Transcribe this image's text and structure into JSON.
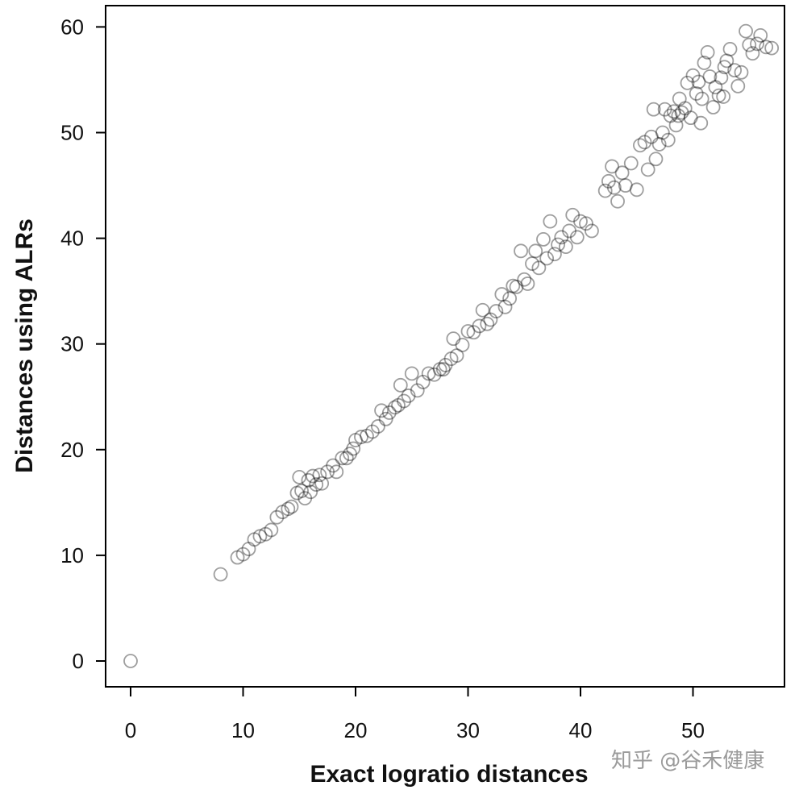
{
  "chart_data": {
    "type": "scatter",
    "title": "",
    "xlabel": "Exact logratio distances",
    "ylabel": "Distances using ALRs",
    "xlim": [
      0,
      57
    ],
    "ylim": [
      0,
      60
    ],
    "x_ticks": [
      0,
      10,
      20,
      30,
      40,
      50
    ],
    "y_ticks": [
      0,
      10,
      20,
      30,
      40,
      50,
      60
    ],
    "grid": false,
    "legend": "none",
    "marker": "open-circle",
    "marker_color": "#000000",
    "series": [
      {
        "points": [
          [
            0,
            0
          ],
          [
            8,
            8.2
          ],
          [
            9.5,
            9.8
          ],
          [
            10,
            10.1
          ],
          [
            10.5,
            10.6
          ],
          [
            11,
            11.5
          ],
          [
            11.5,
            11.8
          ],
          [
            12,
            12
          ],
          [
            12.5,
            12.4
          ],
          [
            13,
            13.6
          ],
          [
            13.5,
            14.1
          ],
          [
            14,
            14.4
          ],
          [
            14.3,
            14.6
          ],
          [
            14.8,
            15.9
          ],
          [
            15,
            17.4
          ],
          [
            15.2,
            16.1
          ],
          [
            15.5,
            15.4
          ],
          [
            15.8,
            17.1
          ],
          [
            16,
            16
          ],
          [
            16.2,
            17.5
          ],
          [
            16.5,
            16.7
          ],
          [
            16.8,
            17.6
          ],
          [
            17,
            16.8
          ],
          [
            17.5,
            17.9
          ],
          [
            18,
            18.5
          ],
          [
            18.3,
            17.9
          ],
          [
            18.8,
            19.2
          ],
          [
            19.2,
            19.2
          ],
          [
            19.5,
            19.6
          ],
          [
            19.8,
            20.1
          ],
          [
            20,
            20.9
          ],
          [
            20.5,
            21.2
          ],
          [
            21,
            21.3
          ],
          [
            21.5,
            21.7
          ],
          [
            22,
            22.2
          ],
          [
            22.3,
            23.7
          ],
          [
            22.7,
            22.9
          ],
          [
            23,
            23.5
          ],
          [
            23.5,
            24
          ],
          [
            23.8,
            24.2
          ],
          [
            24,
            26.1
          ],
          [
            24.3,
            24.6
          ],
          [
            24.7,
            25.1
          ],
          [
            25,
            27.2
          ],
          [
            25.5,
            25.6
          ],
          [
            26,
            26.4
          ],
          [
            26.5,
            27.2
          ],
          [
            27,
            27.1
          ],
          [
            27.5,
            27.6
          ],
          [
            27.8,
            27.6
          ],
          [
            28,
            28
          ],
          [
            28.5,
            28.6
          ],
          [
            28.7,
            30.5
          ],
          [
            29,
            28.9
          ],
          [
            29.5,
            29.9
          ],
          [
            30,
            31.2
          ],
          [
            30.5,
            31.1
          ],
          [
            31,
            31.7
          ],
          [
            31.3,
            33.2
          ],
          [
            31.7,
            31.9
          ],
          [
            32,
            32.3
          ],
          [
            32.5,
            33.1
          ],
          [
            33,
            34.7
          ],
          [
            33.3,
            33.5
          ],
          [
            33.7,
            34.3
          ],
          [
            34,
            35.5
          ],
          [
            34.3,
            35.4
          ],
          [
            34.7,
            38.8
          ],
          [
            35,
            36.1
          ],
          [
            35.3,
            35.7
          ],
          [
            35.7,
            37.6
          ],
          [
            36,
            38.8
          ],
          [
            36.3,
            37.2
          ],
          [
            36.7,
            39.9
          ],
          [
            37,
            38.1
          ],
          [
            37.3,
            41.6
          ],
          [
            37.7,
            38.5
          ],
          [
            38,
            39.4
          ],
          [
            38.3,
            40.1
          ],
          [
            38.7,
            39.2
          ],
          [
            39,
            40.7
          ],
          [
            39.3,
            42.2
          ],
          [
            39.7,
            40.1
          ],
          [
            40,
            41.6
          ],
          [
            40.5,
            41.4
          ],
          [
            41,
            40.7
          ],
          [
            42.2,
            44.5
          ],
          [
            42.5,
            45.4
          ],
          [
            42.8,
            46.8
          ],
          [
            43,
            44.8
          ],
          [
            43.3,
            43.5
          ],
          [
            43.7,
            46.2
          ],
          [
            44,
            45
          ],
          [
            44.5,
            47.1
          ],
          [
            45,
            44.6
          ],
          [
            45.3,
            48.8
          ],
          [
            45.7,
            49.1
          ],
          [
            46,
            46.5
          ],
          [
            46.3,
            49.6
          ],
          [
            46.7,
            47.5
          ],
          [
            47,
            48.9
          ],
          [
            47.3,
            50
          ],
          [
            47.5,
            52.2
          ],
          [
            47.8,
            49.3
          ],
          [
            48,
            51.6
          ],
          [
            48.3,
            52
          ],
          [
            48.5,
            50.7
          ],
          [
            48.8,
            53.2
          ],
          [
            49,
            51.9
          ],
          [
            49.3,
            52.3
          ],
          [
            49.5,
            54.7
          ],
          [
            49.8,
            51.4
          ],
          [
            50,
            55.4
          ],
          [
            50.3,
            53.7
          ],
          [
            50.5,
            54.8
          ],
          [
            50.8,
            53.2
          ],
          [
            51,
            56.6
          ],
          [
            51.3,
            57.6
          ],
          [
            51.5,
            55.3
          ],
          [
            51.8,
            52.4
          ],
          [
            52,
            54.3
          ],
          [
            52.3,
            53.5
          ],
          [
            52.5,
            55.2
          ],
          [
            52.8,
            56.2
          ],
          [
            53,
            56.8
          ],
          [
            53.3,
            57.9
          ],
          [
            53.7,
            55.9
          ],
          [
            54,
            54.4
          ],
          [
            54.3,
            55.7
          ],
          [
            54.7,
            59.6
          ],
          [
            55,
            58.3
          ],
          [
            55.3,
            57.5
          ],
          [
            55.7,
            58.4
          ],
          [
            56,
            59.2
          ],
          [
            56.5,
            58.1
          ],
          [
            57,
            58
          ],
          [
            46.5,
            52.2
          ],
          [
            48.7,
            51.6
          ],
          [
            50.7,
            50.9
          ],
          [
            52.7,
            53.4
          ]
        ]
      }
    ]
  },
  "watermark": {
    "text": "知乎 @谷禾健康"
  }
}
